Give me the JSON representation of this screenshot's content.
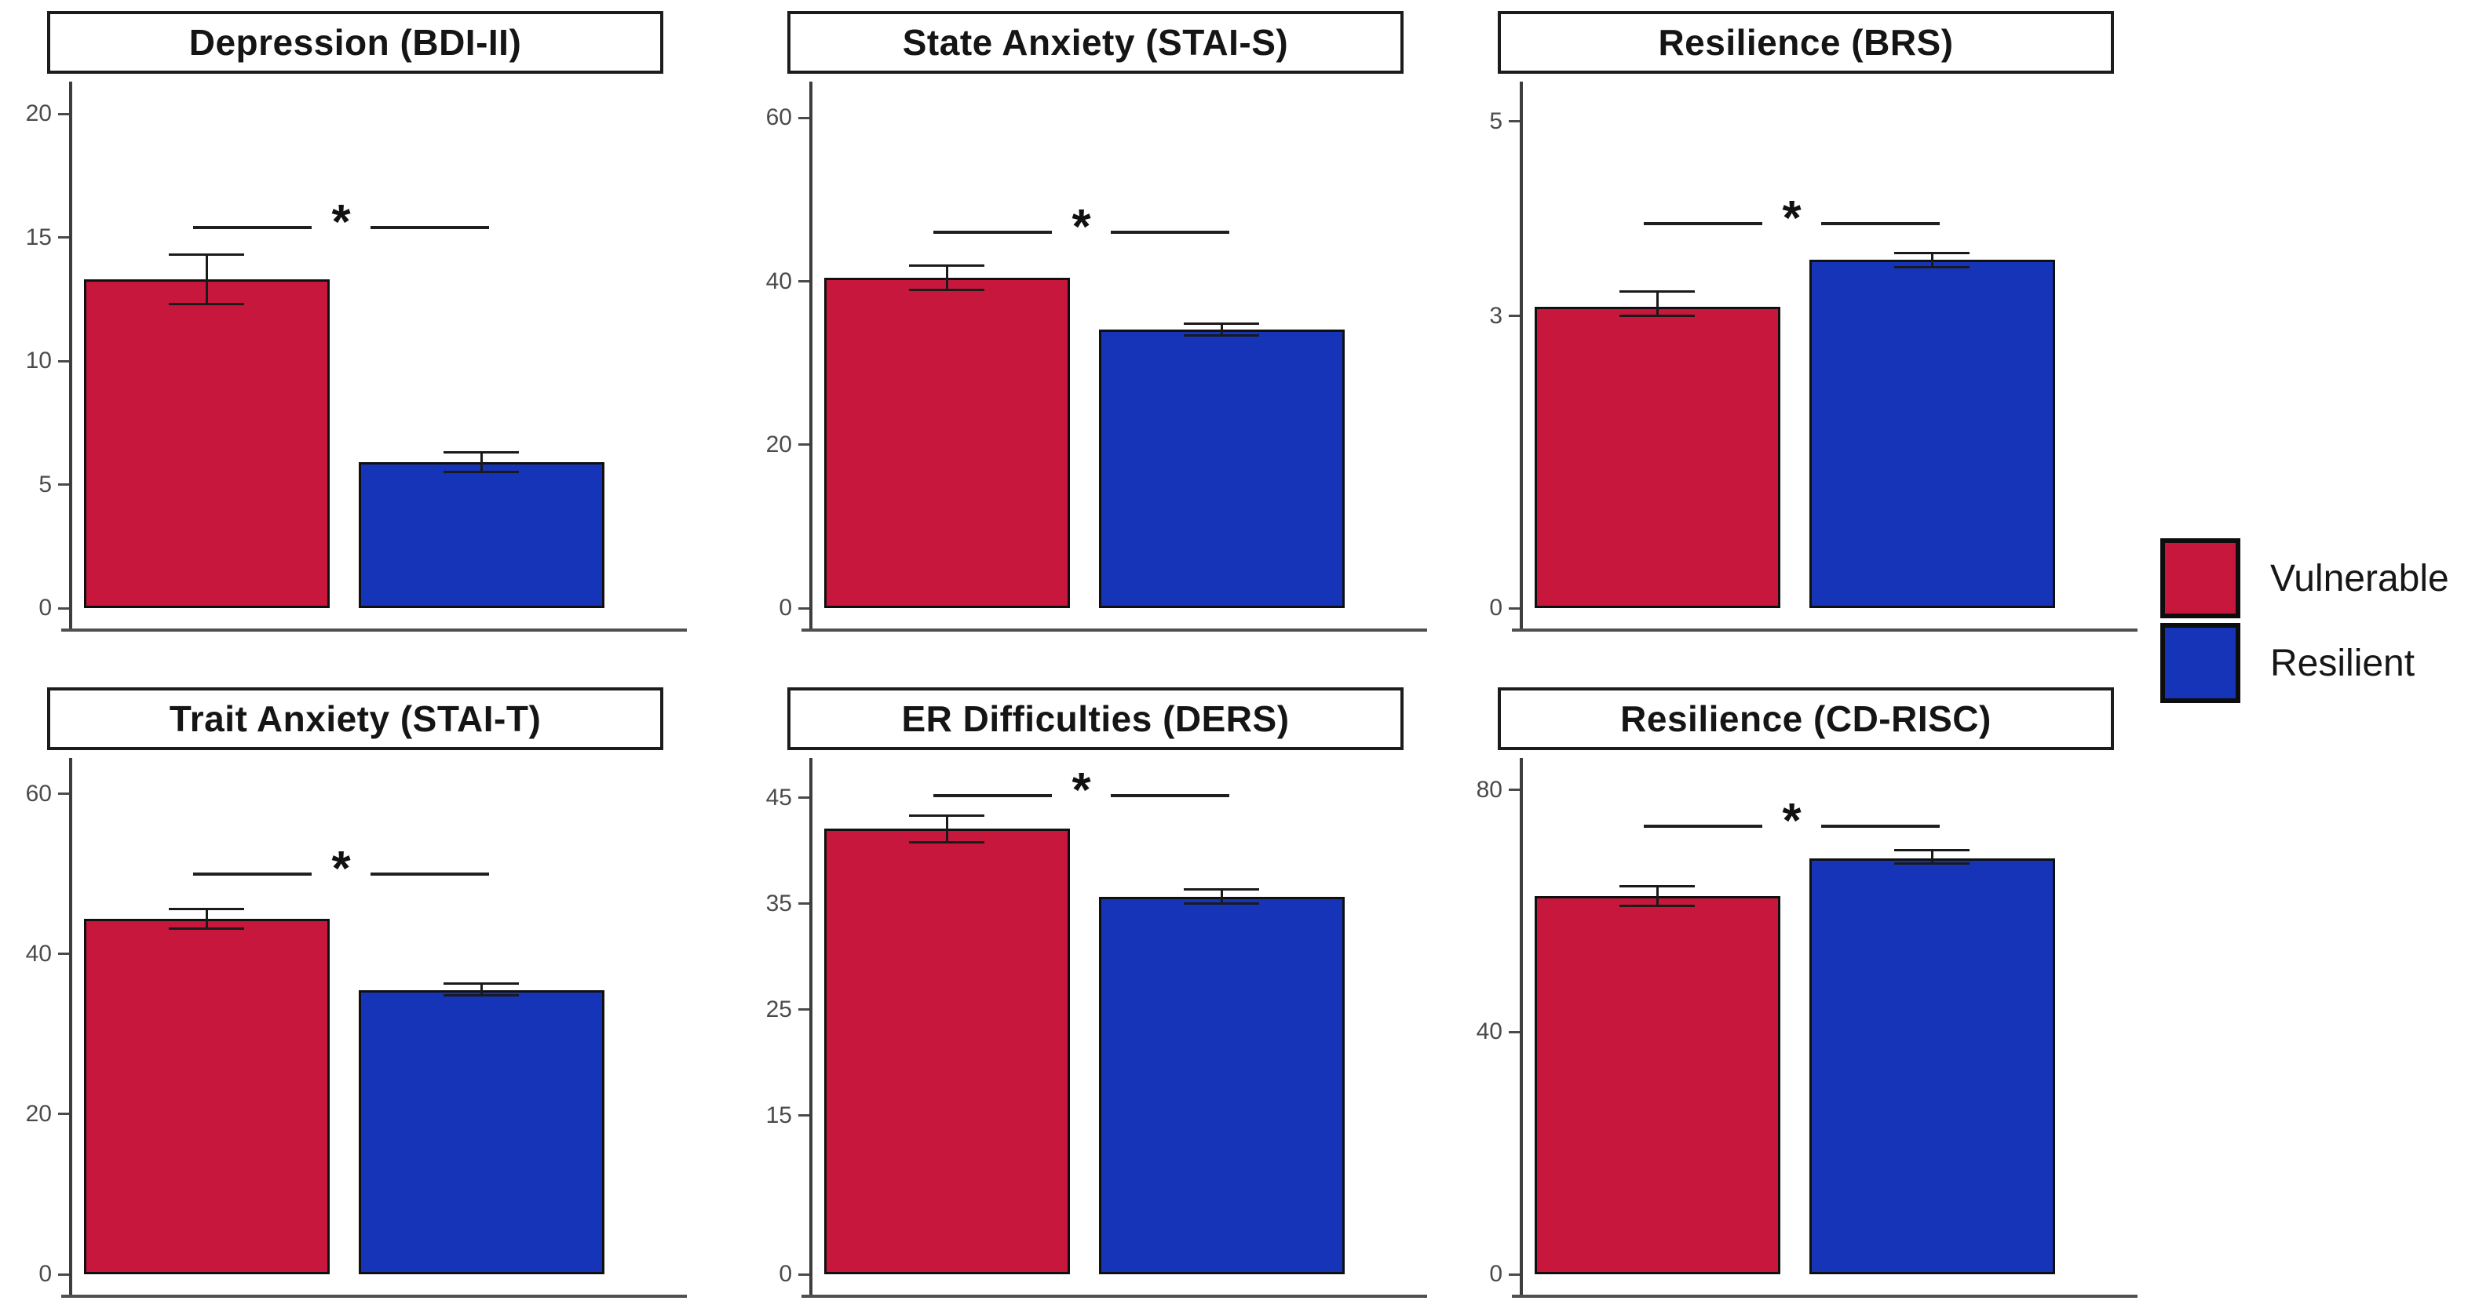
{
  "figure": {
    "background": "#ffffff"
  },
  "legend": {
    "items": [
      {
        "label": "Vulnerable",
        "color": "#C8173C"
      },
      {
        "label": "Resilient",
        "color": "#1634B8"
      }
    ]
  },
  "style": {
    "bar_border": "#101010",
    "axis_color": "#4a4a4a",
    "tick_label_color": "#4b4b4b",
    "significance_color": "#111111"
  },
  "chart_data": [
    {
      "type": "bar",
      "title": "Depression (BDI-II)",
      "categories": [
        "Vulnerable",
        "Resilient"
      ],
      "values": [
        13.3,
        5.9
      ],
      "error_low": [
        12.3,
        5.5
      ],
      "error_high": [
        14.3,
        6.3
      ],
      "yticks": [
        0,
        5,
        10,
        15,
        20
      ],
      "ylim": [
        0,
        21
      ],
      "grid": false,
      "significance": {
        "label": "*",
        "y": 15.4
      }
    },
    {
      "type": "bar",
      "title": "State Anxiety (STAI-S)",
      "categories": [
        "Vulnerable",
        "Resilient"
      ],
      "values": [
        40.4,
        34.1
      ],
      "error_low": [
        39.0,
        33.4
      ],
      "error_high": [
        41.9,
        34.8
      ],
      "yticks": [
        0,
        20,
        40,
        60
      ],
      "ylim": [
        0,
        63.5
      ],
      "grid": false,
      "significance": {
        "label": "*",
        "y": 46
      }
    },
    {
      "type": "bar",
      "title": "Resilience (BRS)",
      "categories": [
        "Vulnerable",
        "Resilient"
      ],
      "values": [
        3.1,
        3.58
      ],
      "error_low": [
        3.0,
        3.5
      ],
      "error_high": [
        3.25,
        3.65
      ],
      "yticks": [
        0,
        3,
        5
      ],
      "ylim": [
        0,
        5.33
      ],
      "grid": false,
      "significance": {
        "label": "*",
        "y": 3.95
      }
    },
    {
      "type": "bar",
      "title": "Trait Anxiety (STAI-T)",
      "categories": [
        "Vulnerable",
        "Resilient"
      ],
      "values": [
        44.4,
        35.5
      ],
      "error_low": [
        43.2,
        34.8
      ],
      "error_high": [
        45.6,
        36.3
      ],
      "yticks": [
        0,
        20,
        40,
        60
      ],
      "ylim": [
        0,
        63.5
      ],
      "grid": false,
      "significance": {
        "label": "*",
        "y": 50
      }
    },
    {
      "type": "bar",
      "title": "ER Difficulties (DERS)",
      "categories": [
        "Vulnerable",
        "Resilient"
      ],
      "values": [
        42.1,
        35.6
      ],
      "error_low": [
        40.8,
        35.0
      ],
      "error_high": [
        43.3,
        36.3
      ],
      "yticks": [
        0,
        15,
        25,
        35,
        45
      ],
      "ylim": [
        0,
        48
      ],
      "grid": false,
      "significance": {
        "label": "*",
        "y": 45.2
      }
    },
    {
      "type": "bar",
      "title": "Resilience (CD-RISC)",
      "categories": [
        "Vulnerable",
        "Resilient"
      ],
      "values": [
        62.5,
        68.7
      ],
      "error_low": [
        60.8,
        67.8
      ],
      "error_high": [
        64.1,
        70.1
      ],
      "yticks": [
        0,
        40,
        80
      ],
      "ylim": [
        0,
        84
      ],
      "grid": false,
      "significance": {
        "label": "*",
        "y": 74
      }
    }
  ]
}
